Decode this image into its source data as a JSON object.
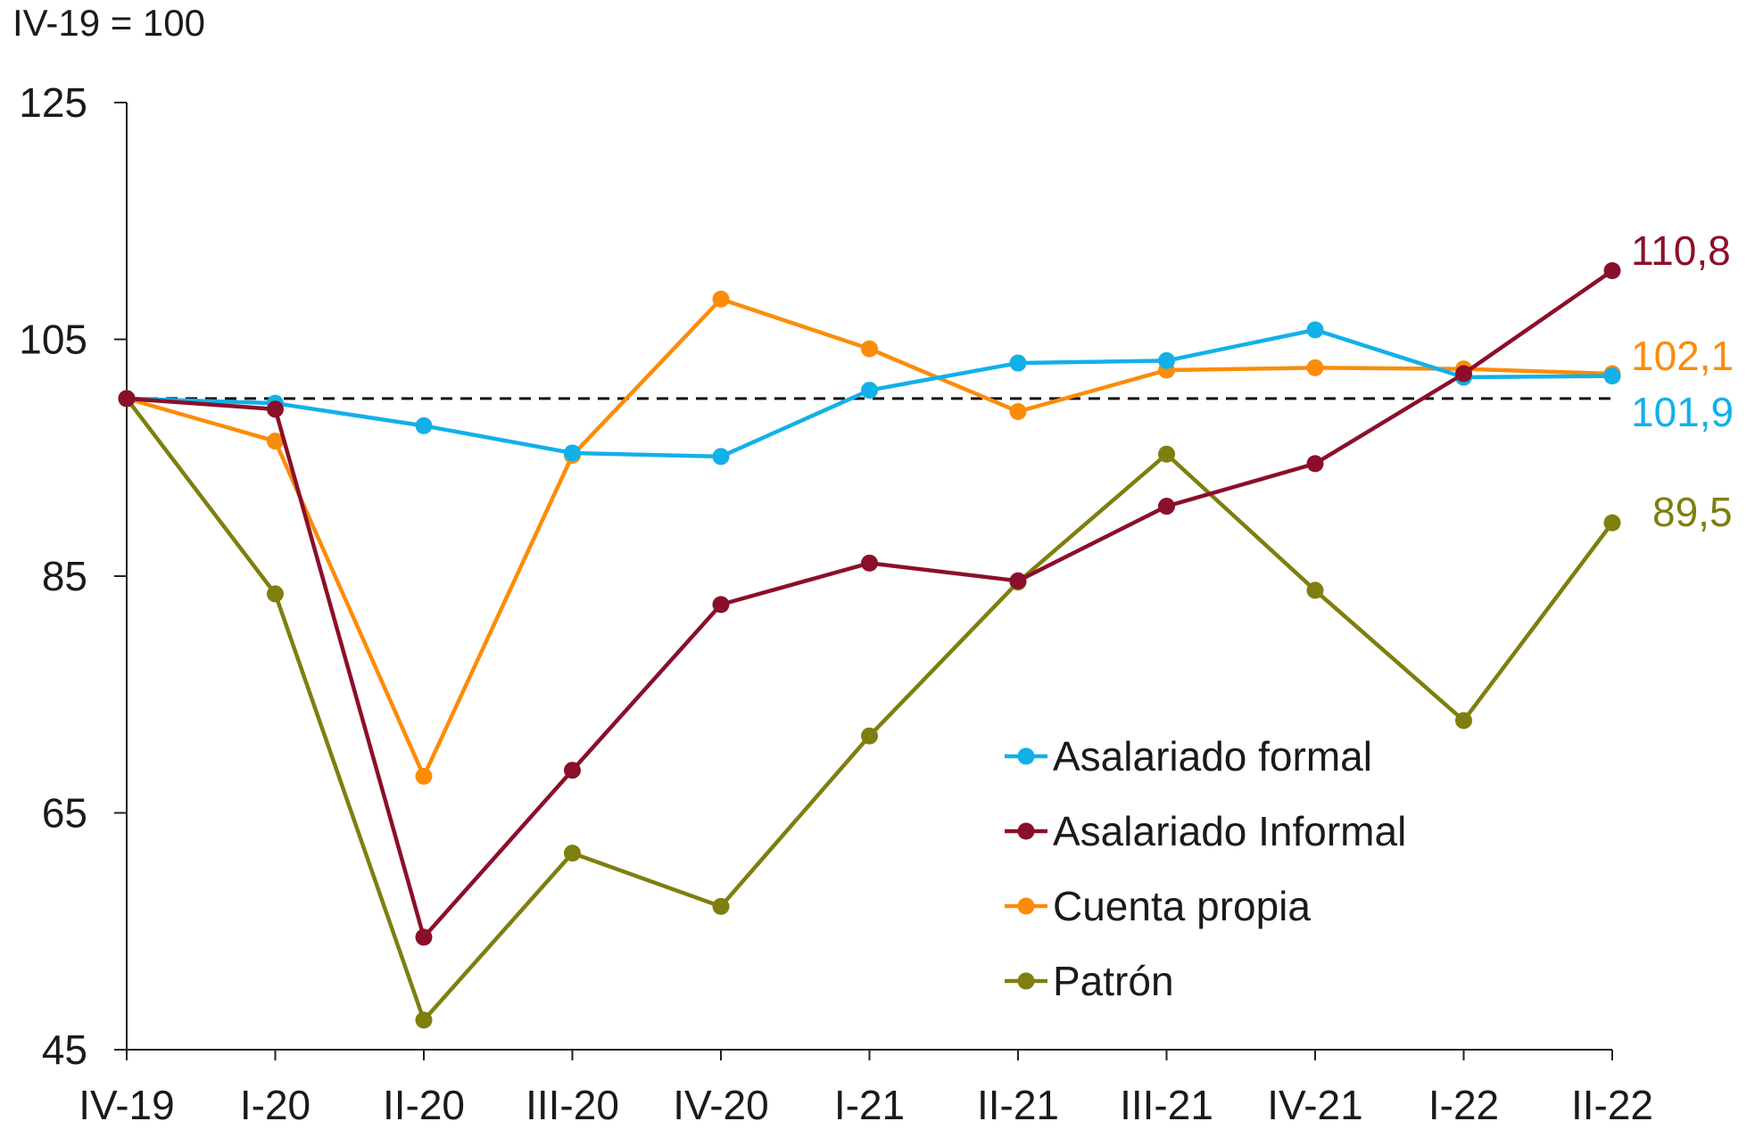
{
  "chart_data": {
    "type": "line",
    "unit_label": "IV-19 = 100",
    "categories": [
      "IV-19",
      "I-20",
      "II-20",
      "III-20",
      "IV-20",
      "I-21",
      "II-21",
      "III-21",
      "IV-21",
      "I-22",
      "II-22"
    ],
    "ylim": [
      45,
      125
    ],
    "yticks": [
      "125",
      "105",
      "85",
      "65",
      "45"
    ],
    "ytick_values": [
      125,
      105,
      85,
      65,
      45
    ],
    "reference_line": 100,
    "grid": false,
    "legend_position": "bottom-right",
    "series": [
      {
        "name": "Asalariado formal",
        "color": "#12b0e8",
        "values": [
          100,
          99.6,
          97.7,
          95.4,
          95.1,
          100.7,
          103.0,
          103.2,
          105.8,
          101.8,
          101.9
        ],
        "end_label": "101,9"
      },
      {
        "name": "Asalariado Informal",
        "color": "#8b0f2a",
        "values": [
          100,
          99.1,
          54.5,
          68.6,
          82.6,
          86.1,
          84.6,
          90.9,
          94.5,
          102.1,
          110.8
        ],
        "end_label": "110,8"
      },
      {
        "name": "Cuenta propia",
        "color": "#fb8c0a",
        "values": [
          100,
          96.4,
          68.1,
          95.2,
          108.4,
          104.2,
          98.9,
          102.4,
          102.6,
          102.5,
          102.1
        ],
        "end_label": "102,1"
      },
      {
        "name": "Patrón",
        "color": "#7e7f0e",
        "values": [
          100,
          83.5,
          47.5,
          61.6,
          57.1,
          71.5,
          84.5,
          95.3,
          83.8,
          72.8,
          89.5
        ],
        "end_label": "89,5"
      }
    ]
  }
}
